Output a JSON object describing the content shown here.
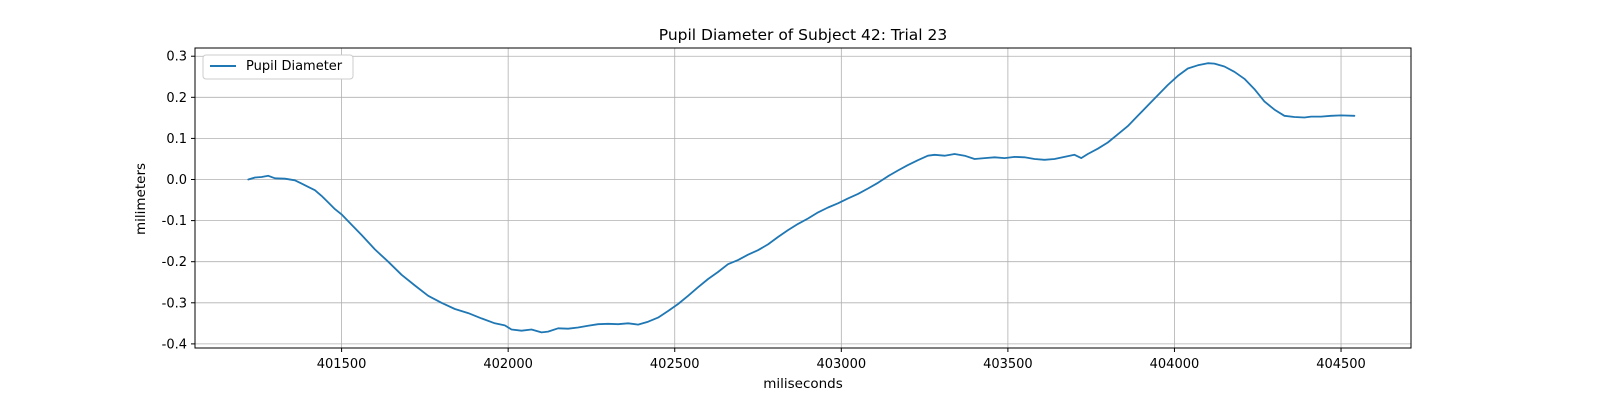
{
  "chart_data": {
    "type": "line",
    "title": "Pupil Diameter of Subject 42: Trial 23",
    "xlabel": "miliseconds",
    "ylabel": "milimeters",
    "xlim": [
      401060,
      404710
    ],
    "ylim": [
      -0.41,
      0.32
    ],
    "xticks": [
      401500,
      402000,
      402500,
      403000,
      403500,
      404000,
      404500
    ],
    "yticks": [
      -0.4,
      -0.3,
      -0.2,
      -0.1,
      0.0,
      0.1,
      0.2,
      0.3
    ],
    "grid": true,
    "legend_position": "top-left",
    "series": [
      {
        "name": "Pupil Diameter",
        "color": "#1f77b4",
        "x": [
          401220,
          401240,
          401260,
          401280,
          401300,
          401330,
          401360,
          401380,
          401400,
          401420,
          401440,
          401460,
          401480,
          401500,
          401530,
          401560,
          401600,
          401640,
          401680,
          401720,
          401760,
          401800,
          401840,
          401880,
          401920,
          401960,
          401990,
          402010,
          402040,
          402070,
          402100,
          402120,
          402150,
          402180,
          402210,
          402240,
          402270,
          402300,
          402330,
          402360,
          402390,
          402420,
          402450,
          402480,
          402510,
          402540,
          402570,
          402600,
          402630,
          402660,
          402690,
          402720,
          402750,
          402780,
          402810,
          402840,
          402870,
          402900,
          402930,
          402960,
          402990,
          403020,
          403050,
          403080,
          403110,
          403140,
          403170,
          403200,
          403230,
          403260,
          403280,
          403310,
          403340,
          403370,
          403400,
          403430,
          403460,
          403490,
          403520,
          403550,
          403580,
          403610,
          403640,
          403670,
          403700,
          403720,
          403740,
          403770,
          403800,
          403830,
          403860,
          403890,
          403920,
          403950,
          403980,
          404010,
          404040,
          404070,
          404100,
          404120,
          404150,
          404180,
          404210,
          404240,
          404270,
          404300,
          404330,
          404360,
          404390,
          404410,
          404440,
          404470,
          404500,
          404540
        ],
        "y": [
          0.0,
          0.005,
          0.006,
          0.009,
          0.003,
          0.002,
          -0.002,
          -0.01,
          -0.018,
          -0.026,
          -0.04,
          -0.056,
          -0.072,
          -0.085,
          -0.11,
          -0.135,
          -0.17,
          -0.2,
          -0.232,
          -0.258,
          -0.283,
          -0.3,
          -0.315,
          -0.325,
          -0.338,
          -0.35,
          -0.355,
          -0.365,
          -0.368,
          -0.365,
          -0.372,
          -0.37,
          -0.362,
          -0.363,
          -0.36,
          -0.356,
          -0.352,
          -0.351,
          -0.352,
          -0.35,
          -0.353,
          -0.346,
          -0.336,
          -0.32,
          -0.303,
          -0.283,
          -0.262,
          -0.242,
          -0.225,
          -0.206,
          -0.196,
          -0.183,
          -0.172,
          -0.158,
          -0.14,
          -0.123,
          -0.108,
          -0.095,
          -0.08,
          -0.068,
          -0.058,
          -0.046,
          -0.035,
          -0.022,
          -0.008,
          0.008,
          0.022,
          0.035,
          0.047,
          0.058,
          0.06,
          0.058,
          0.062,
          0.058,
          0.05,
          0.052,
          0.054,
          0.052,
          0.055,
          0.054,
          0.05,
          0.048,
          0.05,
          0.055,
          0.06,
          0.052,
          0.062,
          0.075,
          0.09,
          0.11,
          0.13,
          0.155,
          0.18,
          0.205,
          0.23,
          0.252,
          0.27,
          0.278,
          0.283,
          0.282,
          0.275,
          0.262,
          0.245,
          0.22,
          0.19,
          0.17,
          0.155,
          0.152,
          0.151,
          0.153,
          0.153,
          0.155,
          0.156,
          0.155
        ]
      }
    ]
  }
}
